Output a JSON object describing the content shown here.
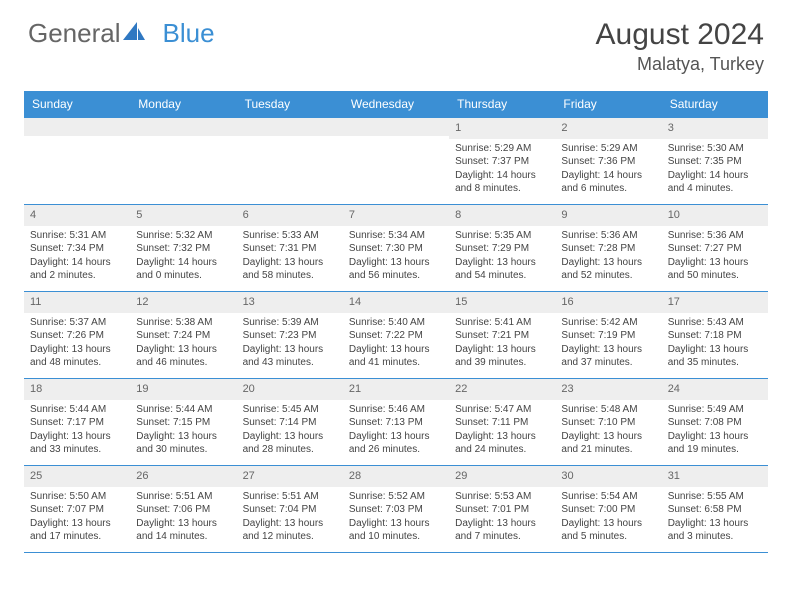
{
  "brand": {
    "part1": "General",
    "part2": "Blue"
  },
  "title": "August 2024",
  "location": "Malatya, Turkey",
  "colors": {
    "header_bg": "#3b8fd4",
    "header_text": "#ffffff",
    "daynum_bg": "#eeeeee",
    "border": "#3b8fd4",
    "text": "#444444",
    "background": "#ffffff"
  },
  "day_labels": [
    "Sunday",
    "Monday",
    "Tuesday",
    "Wednesday",
    "Thursday",
    "Friday",
    "Saturday"
  ],
  "weeks": [
    [
      {
        "n": "",
        "lines": []
      },
      {
        "n": "",
        "lines": []
      },
      {
        "n": "",
        "lines": []
      },
      {
        "n": "",
        "lines": []
      },
      {
        "n": "1",
        "lines": [
          "Sunrise: 5:29 AM",
          "Sunset: 7:37 PM",
          "Daylight: 14 hours",
          "and 8 minutes."
        ]
      },
      {
        "n": "2",
        "lines": [
          "Sunrise: 5:29 AM",
          "Sunset: 7:36 PM",
          "Daylight: 14 hours",
          "and 6 minutes."
        ]
      },
      {
        "n": "3",
        "lines": [
          "Sunrise: 5:30 AM",
          "Sunset: 7:35 PM",
          "Daylight: 14 hours",
          "and 4 minutes."
        ]
      }
    ],
    [
      {
        "n": "4",
        "lines": [
          "Sunrise: 5:31 AM",
          "Sunset: 7:34 PM",
          "Daylight: 14 hours",
          "and 2 minutes."
        ]
      },
      {
        "n": "5",
        "lines": [
          "Sunrise: 5:32 AM",
          "Sunset: 7:32 PM",
          "Daylight: 14 hours",
          "and 0 minutes."
        ]
      },
      {
        "n": "6",
        "lines": [
          "Sunrise: 5:33 AM",
          "Sunset: 7:31 PM",
          "Daylight: 13 hours",
          "and 58 minutes."
        ]
      },
      {
        "n": "7",
        "lines": [
          "Sunrise: 5:34 AM",
          "Sunset: 7:30 PM",
          "Daylight: 13 hours",
          "and 56 minutes."
        ]
      },
      {
        "n": "8",
        "lines": [
          "Sunrise: 5:35 AM",
          "Sunset: 7:29 PM",
          "Daylight: 13 hours",
          "and 54 minutes."
        ]
      },
      {
        "n": "9",
        "lines": [
          "Sunrise: 5:36 AM",
          "Sunset: 7:28 PM",
          "Daylight: 13 hours",
          "and 52 minutes."
        ]
      },
      {
        "n": "10",
        "lines": [
          "Sunrise: 5:36 AM",
          "Sunset: 7:27 PM",
          "Daylight: 13 hours",
          "and 50 minutes."
        ]
      }
    ],
    [
      {
        "n": "11",
        "lines": [
          "Sunrise: 5:37 AM",
          "Sunset: 7:26 PM",
          "Daylight: 13 hours",
          "and 48 minutes."
        ]
      },
      {
        "n": "12",
        "lines": [
          "Sunrise: 5:38 AM",
          "Sunset: 7:24 PM",
          "Daylight: 13 hours",
          "and 46 minutes."
        ]
      },
      {
        "n": "13",
        "lines": [
          "Sunrise: 5:39 AM",
          "Sunset: 7:23 PM",
          "Daylight: 13 hours",
          "and 43 minutes."
        ]
      },
      {
        "n": "14",
        "lines": [
          "Sunrise: 5:40 AM",
          "Sunset: 7:22 PM",
          "Daylight: 13 hours",
          "and 41 minutes."
        ]
      },
      {
        "n": "15",
        "lines": [
          "Sunrise: 5:41 AM",
          "Sunset: 7:21 PM",
          "Daylight: 13 hours",
          "and 39 minutes."
        ]
      },
      {
        "n": "16",
        "lines": [
          "Sunrise: 5:42 AM",
          "Sunset: 7:19 PM",
          "Daylight: 13 hours",
          "and 37 minutes."
        ]
      },
      {
        "n": "17",
        "lines": [
          "Sunrise: 5:43 AM",
          "Sunset: 7:18 PM",
          "Daylight: 13 hours",
          "and 35 minutes."
        ]
      }
    ],
    [
      {
        "n": "18",
        "lines": [
          "Sunrise: 5:44 AM",
          "Sunset: 7:17 PM",
          "Daylight: 13 hours",
          "and 33 minutes."
        ]
      },
      {
        "n": "19",
        "lines": [
          "Sunrise: 5:44 AM",
          "Sunset: 7:15 PM",
          "Daylight: 13 hours",
          "and 30 minutes."
        ]
      },
      {
        "n": "20",
        "lines": [
          "Sunrise: 5:45 AM",
          "Sunset: 7:14 PM",
          "Daylight: 13 hours",
          "and 28 minutes."
        ]
      },
      {
        "n": "21",
        "lines": [
          "Sunrise: 5:46 AM",
          "Sunset: 7:13 PM",
          "Daylight: 13 hours",
          "and 26 minutes."
        ]
      },
      {
        "n": "22",
        "lines": [
          "Sunrise: 5:47 AM",
          "Sunset: 7:11 PM",
          "Daylight: 13 hours",
          "and 24 minutes."
        ]
      },
      {
        "n": "23",
        "lines": [
          "Sunrise: 5:48 AM",
          "Sunset: 7:10 PM",
          "Daylight: 13 hours",
          "and 21 minutes."
        ]
      },
      {
        "n": "24",
        "lines": [
          "Sunrise: 5:49 AM",
          "Sunset: 7:08 PM",
          "Daylight: 13 hours",
          "and 19 minutes."
        ]
      }
    ],
    [
      {
        "n": "25",
        "lines": [
          "Sunrise: 5:50 AM",
          "Sunset: 7:07 PM",
          "Daylight: 13 hours",
          "and 17 minutes."
        ]
      },
      {
        "n": "26",
        "lines": [
          "Sunrise: 5:51 AM",
          "Sunset: 7:06 PM",
          "Daylight: 13 hours",
          "and 14 minutes."
        ]
      },
      {
        "n": "27",
        "lines": [
          "Sunrise: 5:51 AM",
          "Sunset: 7:04 PM",
          "Daylight: 13 hours",
          "and 12 minutes."
        ]
      },
      {
        "n": "28",
        "lines": [
          "Sunrise: 5:52 AM",
          "Sunset: 7:03 PM",
          "Daylight: 13 hours",
          "and 10 minutes."
        ]
      },
      {
        "n": "29",
        "lines": [
          "Sunrise: 5:53 AM",
          "Sunset: 7:01 PM",
          "Daylight: 13 hours",
          "and 7 minutes."
        ]
      },
      {
        "n": "30",
        "lines": [
          "Sunrise: 5:54 AM",
          "Sunset: 7:00 PM",
          "Daylight: 13 hours",
          "and 5 minutes."
        ]
      },
      {
        "n": "31",
        "lines": [
          "Sunrise: 5:55 AM",
          "Sunset: 6:58 PM",
          "Daylight: 13 hours",
          "and 3 minutes."
        ]
      }
    ]
  ]
}
